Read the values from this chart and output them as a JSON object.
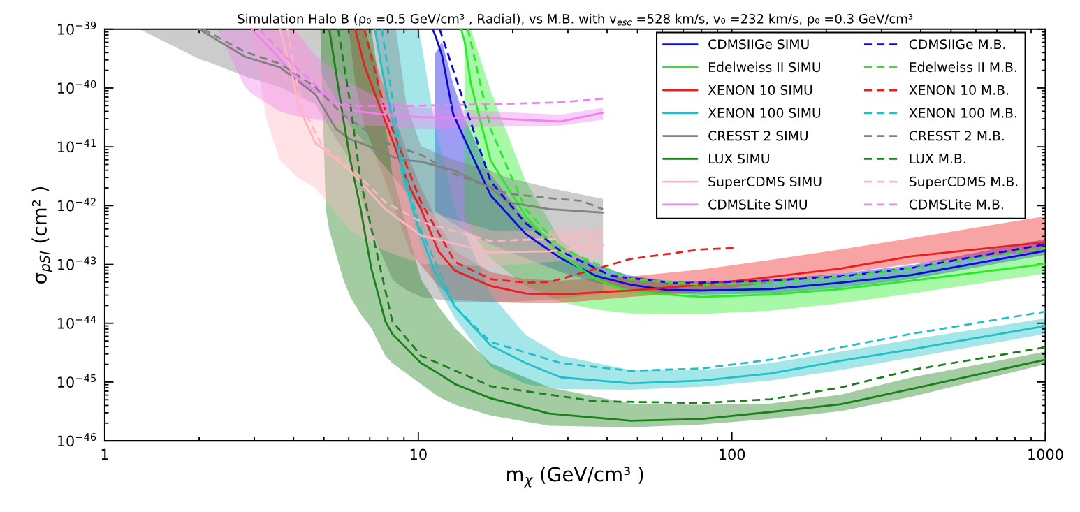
{
  "chart_data": {
    "type": "line",
    "title": "Simulation Halo B (ρ₀ =0.5 GeV/cm³ , Radial), vs M.B. with v$_{esc}$ =528 km/s, v₀ =232 km/s, ρ₀ =0.3 GeV/cm³",
    "xlabel": "m$_{χ}$ (GeV/cm³ )",
    "ylabel": "σ$_{pSI}$ (cm² )",
    "log": "xy",
    "xlim": [
      1,
      1000
    ],
    "ylim": [
      1e-46,
      1e-39
    ],
    "xticks": [
      1,
      10,
      100,
      1000
    ],
    "yticks": [
      {
        "value": 1e-46,
        "label": "10$^{−46}$"
      },
      {
        "value": 1e-45,
        "label": "10$^{−45}$"
      },
      {
        "value": 1e-44,
        "label": "10$^{−44}$"
      },
      {
        "value": 1e-43,
        "label": "10$^{−43}$"
      },
      {
        "value": 1e-42,
        "label": "10$^{−42}$"
      },
      {
        "value": 1e-41,
        "label": "10$^{−41}$"
      },
      {
        "value": 1e-40,
        "label": "10$^{−40}$"
      },
      {
        "value": 1e-39,
        "label": "10$^{−39}$"
      }
    ],
    "grid": false,
    "legend": "top right",
    "series": [
      {
        "name": "CDMSIIGe SIMU",
        "color": "#0a0ae0",
        "line_style": "solid",
        "x": [
          11.1,
          11.3,
          11.9,
          12.9,
          14.05,
          17,
          22,
          28.5,
          36.8,
          47.6,
          61.6,
          80,
          133,
          223,
          374,
          1000
        ],
        "values": [
          1e-39,
          8.1e-40,
          3.6e-40,
          3.7e-41,
          1.34e-41,
          1.5e-42,
          3.3e-43,
          1.27e-43,
          6.4e-44,
          4.5e-44,
          3.7e-44,
          3.6e-44,
          3.8e-44,
          4.9e-44,
          6.6e-44,
          1.7e-43
        ],
        "upper": [
          null,
          3.8e-40,
          6.2e-40,
          1.2e-40,
          3.05e-41,
          3.4e-42,
          5.7e-43,
          2.1e-43,
          9.7e-44,
          6.4e-44,
          5.3e-44,
          5.2e-44,
          5.6e-44,
          7e-44,
          9.7e-44,
          2.7e-43
        ],
        "lower": [
          null,
          8.2e-43,
          6.6e-43,
          5e-43,
          3.8e-43,
          2.2e-43,
          1.27e-43,
          7.4e-44,
          4.9e-44,
          3.7e-44,
          3.2e-44,
          3.07e-44,
          3.2e-44,
          4e-44,
          5.6e-44,
          1.46e-43
        ]
      },
      {
        "name": "Edelweiss II SIMU",
        "color": "#22ee22",
        "line_style": "solid",
        "x": [
          13.7,
          14.05,
          14.7,
          17,
          22,
          28.5,
          36.8,
          47.6,
          80,
          133,
          223,
          374,
          1000
        ],
        "values": [
          1e-39,
          6.2e-40,
          1.2e-40,
          5.9e-42,
          6.6e-43,
          1.46e-43,
          5.6e-44,
          3.4e-44,
          2.8e-44,
          3.07e-44,
          3.8e-44,
          5.3e-44,
          1.02e-43
        ],
        "upper": [
          null,
          1e-39,
          1e-39,
          9.1e-41,
          2.6e-42,
          2.5e-43,
          8.9e-44,
          5.3e-44,
          4.3e-44,
          4.6e-44,
          5.6e-44,
          7.8e-44,
          1.6e-43
        ],
        "lower": [
          null,
          6.6e-43,
          3.8e-43,
          1.27e-43,
          4.3e-44,
          2.3e-44,
          1.7e-44,
          1.47e-44,
          1.43e-44,
          1.64e-44,
          2.2e-44,
          3.2e-44,
          7e-44
        ]
      },
      {
        "name": "XENON 10 SIMU",
        "color": "#ee1c1c",
        "line_style": "solid",
        "x": [
          6.0,
          6.29,
          6.73,
          7.85,
          9.4,
          10.2,
          11.6,
          13.1,
          17,
          22,
          28.5,
          47.6,
          80,
          133,
          223,
          374,
          1000
        ],
        "values": [
          null,
          1e-39,
          2.4e-40,
          2.7e-41,
          2e-42,
          8.7e-43,
          1.67e-43,
          7.8e-44,
          4.3e-44,
          3.2e-44,
          3.07e-44,
          3.6e-44,
          4.5e-44,
          6.1e-44,
          8.5e-44,
          1.38e-43,
          2.4e-43
        ],
        "upper": [
          1e-39,
          1e-39,
          1e-39,
          9.1e-41,
          5.9e-42,
          2e-42,
          5e-43,
          1.67e-43,
          7.4e-44,
          5.6e-44,
          5.3e-44,
          6.25e-44,
          8.2e-44,
          1.2e-43,
          1.8e-43,
          2.8e-43,
          6.6e-43
        ],
        "lower": [
          1e-39,
          1.2e-40,
          2.3e-41,
          2.6e-42,
          1.67e-43,
          9.7e-44,
          4.3e-44,
          2.5e-44,
          2.3e-44,
          2.2e-44,
          2.2e-44,
          2.8e-44,
          3.4e-44,
          4.9e-44,
          7e-44,
          1.02e-43,
          1.7e-43
        ]
      },
      {
        "name": "XENON 100 SIMU",
        "color": "#1fc0c8",
        "line_style": "solid",
        "x": [
          7.27,
          7.65,
          8.26,
          8.93,
          10.05,
          11.3,
          13.1,
          17,
          22,
          28.5,
          47.6,
          80,
          133,
          223,
          374,
          1000
        ],
        "values": [
          1e-39,
          2.1e-40,
          3.05e-41,
          3.4e-42,
          3.8e-43,
          7.4e-44,
          1.9e-44,
          4.2e-45,
          2.1e-45,
          1.2e-45,
          9.5e-46,
          1.06e-45,
          1.4e-45,
          2.3e-45,
          3.6e-45,
          9e-45
        ],
        "upper": [
          1e-39,
          1e-39,
          1e-39,
          1e-39,
          1e-39,
          2.3e-41,
          8.7e-43,
          3.2e-44,
          6.3e-45,
          2.8e-45,
          1.6e-45,
          1.6e-45,
          2.1e-45,
          3.3e-45,
          5.3e-45,
          1.21e-44
        ],
        "lower": [
          1e-39,
          1.58e-40,
          2e-41,
          2.26e-42,
          2.5e-43,
          4.9e-44,
          1.21e-44,
          1.8e-45,
          9.2e-46,
          7.6e-46,
          7.4e-46,
          8.3e-46,
          1.06e-45,
          1.6e-45,
          2.6e-45,
          6.6e-45
        ]
      },
      {
        "name": "CRESST 2 SIMU",
        "color": "#808080",
        "line_style": "solid",
        "x": [
          1.29,
          2.0,
          2.17,
          2.8,
          3.62,
          4.69,
          5.47,
          6.07,
          6.73,
          7.08,
          8.26,
          8.48,
          9.16,
          10.2,
          13.1,
          17,
          19.3,
          26.2,
          38.8
        ],
        "values": [
          null,
          1e-39,
          7.7e-40,
          3.4e-40,
          2.25e-40,
          7.9e-41,
          2e-41,
          1.34e-41,
          1.1e-41,
          9.7e-42,
          6.8e-42,
          6.4e-42,
          5.9e-42,
          5.6e-42,
          3.9e-42,
          2e-42,
          1.14e-42,
          8.7e-43,
          7.6e-43
        ],
        "upper": [
          1e-39,
          1e-39,
          1e-39,
          1e-39,
          1e-39,
          1e-39,
          1e-39,
          1e-39,
          1e-39,
          1e-39,
          1e-39,
          1e-39,
          5.3e-41,
          1.02e-41,
          5.9e-42,
          3.9e-42,
          3e-42,
          2e-42,
          1.3e-42
        ],
        "lower": [
          1e-39,
          3.1e-40,
          2.7e-40,
          1.58e-40,
          1.04e-40,
          5.3e-41,
          1.34e-41,
          5.9e-42,
          8.7e-43,
          3.8e-43,
          5.6e-44,
          4.9e-44,
          3.7e-44,
          2.8e-44,
          2.3e-44,
          2.3e-44,
          2.3e-44,
          2.5e-44,
          3.2e-44
        ]
      },
      {
        "name": "LUX SIMU",
        "color": "#1a801a",
        "line_style": "solid",
        "x": [
          4.87,
          5.07,
          5.2,
          5.76,
          6.07,
          6.55,
          7.08,
          7.85,
          8.26,
          10.2,
          11.6,
          13.1,
          17,
          26.2,
          47.6,
          80,
          133,
          223,
          374,
          1000
        ],
        "values": [
          null,
          null,
          1e-39,
          3.05e-41,
          5.9e-42,
          8.7e-43,
          8.5e-44,
          1.08e-44,
          6.6e-45,
          2.1e-45,
          1.4e-45,
          9.2e-46,
          5.3e-46,
          2.9e-46,
          2.2e-46,
          2.35e-46,
          3.1e-46,
          4.2e-46,
          7.6e-46,
          2.4e-45
        ],
        "upper": [
          1e-39,
          1e-39,
          1e-39,
          1e-39,
          1e-39,
          1e-39,
          1e-39,
          2.3e-41,
          3.4e-42,
          5.6e-44,
          1.9e-44,
          8.3e-45,
          2.1e-45,
          8.1e-46,
          4.3e-46,
          4.1e-46,
          4.3e-46,
          6.1e-46,
          1.2e-45,
          3.3e-45
        ],
        "lower": [
          1e-39,
          8.7e-43,
          3.8e-43,
          5.6e-44,
          2.8e-44,
          1.43e-44,
          8.3e-45,
          2.8e-45,
          2.1e-45,
          9.2e-46,
          5.6e-46,
          4.1e-46,
          2.7e-46,
          1.8e-46,
          1.7e-46,
          1.9e-46,
          2.35e-46,
          3.2e-46,
          5.6e-46,
          2e-45
        ]
      },
      {
        "name": "SuperCDMS SIMU",
        "color": "#ffb6c1",
        "line_style": "solid",
        "x": [
          2.95,
          3.27,
          3.62,
          4.02,
          4.12,
          4.69,
          6.07,
          7.85,
          10.2,
          17,
          26.2,
          38.8
        ],
        "values": [
          null,
          null,
          1e-39,
          1.2e-40,
          5.3e-41,
          1.17e-41,
          3.9e-42,
          8.7e-43,
          3.1e-43,
          1.6e-43,
          1.67e-43,
          2.1e-43
        ],
        "upper": [
          1e-39,
          1e-39,
          1e-39,
          1e-39,
          1e-39,
          2.7e-40,
          2.3e-41,
          4.5e-42,
          8.7e-43,
          3.8e-43,
          3.8e-43,
          4.4e-43
        ],
        "lower": [
          1e-39,
          3.05e-41,
          5.9e-42,
          3.4e-42,
          3e-42,
          2e-42,
          3.8e-43,
          1.67e-43,
          1.02e-43,
          9.2e-44,
          1.1e-43,
          1.27e-43
        ]
      },
      {
        "name": "CDMSLite SIMU",
        "color": "#ee82ee",
        "line_style": "solid",
        "x": [
          2.28,
          2.8,
          2.95,
          3.62,
          4.02,
          4.69,
          6.07,
          7.85,
          10.2,
          17,
          28.5,
          38.8
        ],
        "values": [
          null,
          null,
          1e-39,
          3.1e-40,
          1.58e-40,
          9.1e-41,
          4.2e-41,
          3.5e-41,
          3.2e-41,
          3.05e-41,
          2.7e-41,
          3.8e-41
        ],
        "upper": [
          1e-39,
          1e-39,
          1e-39,
          1e-39,
          1e-39,
          3.6e-40,
          1.2e-40,
          6e-41,
          4.6e-41,
          4e-41,
          3.5e-41,
          4.6e-41
        ],
        "lower": [
          1e-39,
          1.04e-40,
          7.9e-41,
          4e-41,
          3.4e-41,
          2.9e-41,
          2.45e-41,
          2.2e-41,
          2e-41,
          2.2e-41,
          2.3e-41,
          2.9e-41
        ]
      },
      {
        "name": "CDMSIIGe M.B.",
        "color": "#0a0ae0",
        "line_style": "dashed",
        "x": [
          11.7,
          14.05,
          17,
          22,
          28.5,
          41.2,
          65.6,
          80,
          133,
          223,
          374,
          1000
        ],
        "values": [
          1e-39,
          5.3e-41,
          2.6e-42,
          5e-43,
          1.67e-43,
          6.4e-44,
          4.8e-44,
          4.9e-44,
          5.3e-44,
          6.25e-44,
          8.7e-44,
          2.2e-43
        ]
      },
      {
        "name": "Edelweiss II M.B.",
        "color": "#22ee22",
        "line_style": "dashed",
        "x": [
          14.4,
          17,
          22,
          28.5,
          47.6,
          80,
          133,
          223,
          374,
          1000
        ],
        "values": [
          1e-39,
          2e-41,
          8.7e-43,
          1.9e-43,
          5.6e-44,
          4.5e-44,
          4.9e-44,
          6.1e-44,
          8.5e-44,
          1.9e-43
        ]
      },
      {
        "name": "XENON 10 M.B.",
        "color": "#ee1c1c",
        "line_style": "dashed",
        "x": [
          6.73,
          7.85,
          10.2,
          13.1,
          17,
          22,
          26.2,
          47.6,
          80,
          103
        ],
        "values": [
          1e-39,
          4e-41,
          1.14e-42,
          1.1e-43,
          5.6e-44,
          4.9e-44,
          5e-44,
          1.24e-43,
          1.8e-43,
          1.9e-43
        ]
      },
      {
        "name": "XENON 100 M.B.",
        "color": "#1fc0c8",
        "line_style": "dashed",
        "x": [
          7.65,
          8.93,
          10.2,
          13.1,
          17,
          28.5,
          47.6,
          80,
          133,
          223,
          374,
          1000
        ],
        "values": [
          1e-39,
          4.5e-42,
          3.8e-43,
          1.9e-44,
          4.8e-45,
          2.1e-45,
          1.55e-45,
          1.7e-45,
          2.4e-45,
          3.9e-45,
          6.6e-45,
          1.58e-44
        ]
      },
      {
        "name": "CRESST 2 M.B.",
        "color": "#808080",
        "line_style": "dashed",
        "x": [
          2.06,
          2.8,
          3.62,
          4.69,
          5.76,
          7.85,
          10.2,
          13.1,
          19.3,
          26.2,
          33.2,
          38.8
        ],
        "values": [
          1e-39,
          4.1e-40,
          2.6e-40,
          1.04e-40,
          3.5e-41,
          1.17e-41,
          7.3e-42,
          3.4e-42,
          1.6e-42,
          1.34e-42,
          1.2e-42,
          8.7e-43
        ]
      },
      {
        "name": "LUX M.B.",
        "color": "#1a801a",
        "line_style": "dashed",
        "x": [
          5.55,
          6.07,
          6.55,
          8.26,
          10.2,
          17,
          36.8,
          80,
          133,
          223,
          374,
          1000
        ],
        "values": [
          1e-39,
          5.3e-41,
          2.6e-42,
          1.08e-44,
          2.8e-45,
          8.5e-46,
          4.7e-46,
          4.4e-46,
          5.1e-46,
          8.1e-46,
          1.6e-45,
          3.9e-45
        ]
      },
      {
        "name": "SuperCDMS M.B.",
        "color": "#ffb6c1",
        "line_style": "dashed",
        "x": [
          3.82,
          4.23,
          4.94,
          6.07,
          7.85,
          10.2,
          17,
          26.2,
          36.8
        ],
        "values": [
          1e-39,
          5.3e-41,
          1.02e-41,
          4.5e-42,
          1.14e-42,
          5.3e-43,
          2.5e-43,
          2.7e-43,
          3.1e-43
        ]
      },
      {
        "name": "CDMSLite M.B.",
        "color": "#ee82ee",
        "line_style": "dashed",
        "x": [
          3.11,
          4.12,
          5.47,
          6.07,
          10.2,
          17,
          28.5,
          38.8
        ],
        "values": [
          1e-39,
          2.1e-40,
          5.7e-41,
          5e-41,
          5e-41,
          5.3e-41,
          5.7e-41,
          6.6e-41
        ]
      }
    ]
  }
}
